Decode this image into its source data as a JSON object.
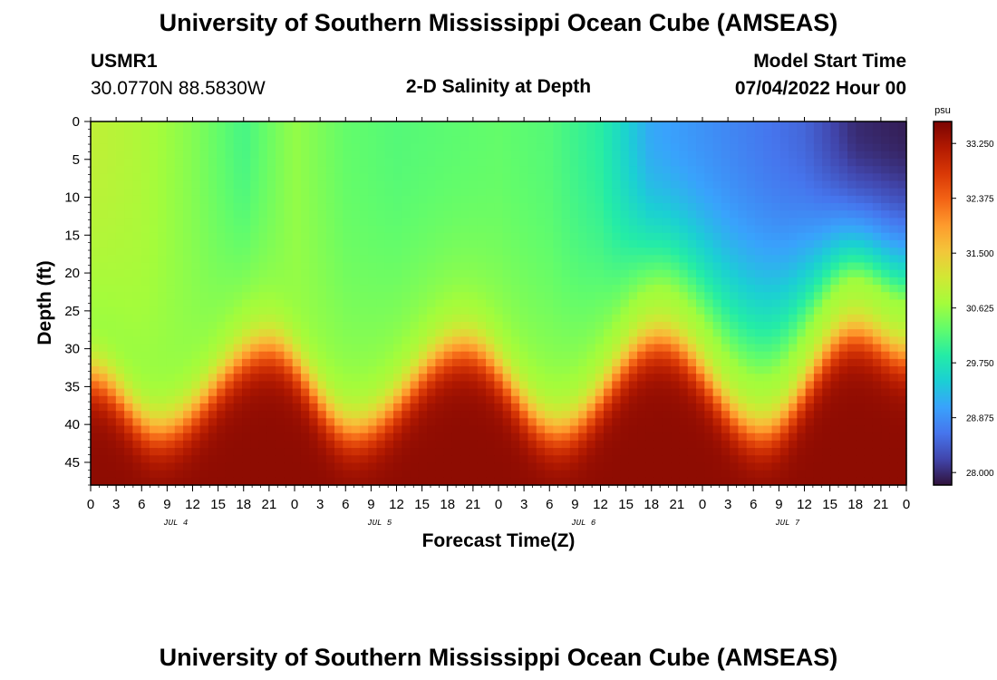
{
  "chart_data": {
    "type": "heatmap",
    "title": "University of Southern Mississippi Ocean Cube (AMSEAS)",
    "footer_title": "University of Southern Mississippi Ocean Cube (AMSEAS)",
    "station": "USMR1",
    "location": "30.0770N  88.5830W",
    "subtitle": "2-D Salinity at Depth",
    "model_start_label": "Model Start Time",
    "model_start_value": "07/04/2022 Hour 00",
    "xlabel": "Forecast Time(Z)",
    "ylabel": "Depth (ft)",
    "x_tick_labels": [
      "0",
      "3",
      "6",
      "9",
      "12",
      "15",
      "18",
      "21",
      "0",
      "3",
      "6",
      "9",
      "12",
      "15",
      "18",
      "21",
      "0",
      "3",
      "6",
      "9",
      "12",
      "15",
      "18",
      "21",
      "0",
      "3",
      "6",
      "9",
      "12",
      "15",
      "18",
      "21",
      "0"
    ],
    "day_labels": [
      "JUL 4",
      "JUL 5",
      "JUL 6",
      "JUL 7"
    ],
    "xlim_hours": [
      0,
      96
    ],
    "y_ticks": [
      0,
      5,
      10,
      15,
      20,
      25,
      30,
      35,
      40,
      45
    ],
    "ylim_ft": [
      0,
      48
    ],
    "colorbar": {
      "unit": "psu",
      "ticks": [
        "33.250",
        "32.375",
        "31.500",
        "30.625",
        "29.750",
        "28.875",
        "28.000"
      ],
      "range": [
        27.8,
        33.6
      ]
    },
    "field_model": {
      "description": "Approximate salinity field: fresher surface water over salty bottom water with a tidally oscillating halocline",
      "halocline_crests_hours": [
        8,
        31,
        55,
        79
      ],
      "halocline_troughs_hours": [
        21,
        44,
        67,
        90
      ],
      "halocline_depth_at_crest_ft": [
        38,
        38,
        38,
        38
      ],
      "halocline_depth_at_trough_ft": [
        27,
        27,
        26,
        25
      ],
      "surface_salinity_psu_by_hour": [
        [
          0,
          30.95
        ],
        [
          6,
          30.8
        ],
        [
          12,
          30.5
        ],
        [
          18,
          30.1
        ],
        [
          24,
          30.6
        ],
        [
          30,
          30.3
        ],
        [
          36,
          30.2
        ],
        [
          42,
          30.25
        ],
        [
          48,
          30.3
        ],
        [
          54,
          30.2
        ],
        [
          60,
          29.9
        ],
        [
          66,
          29.1
        ],
        [
          72,
          28.9
        ],
        [
          78,
          28.7
        ],
        [
          84,
          28.5
        ],
        [
          90,
          28.0
        ],
        [
          96,
          27.9
        ]
      ],
      "bottom_salinity_psu": 33.45,
      "mid_layer_salinity_psu": 30.6
    },
    "colors": {
      "cmap": [
        "#30123b",
        "#4145ab",
        "#4675ed",
        "#39a2fc",
        "#1bcfd4",
        "#24eca6",
        "#61fc6c",
        "#a4fc3b",
        "#d1e834",
        "#f3c63a",
        "#fe9b2d",
        "#f36315",
        "#d93806",
        "#b11901",
        "#7a0403"
      ]
    }
  }
}
